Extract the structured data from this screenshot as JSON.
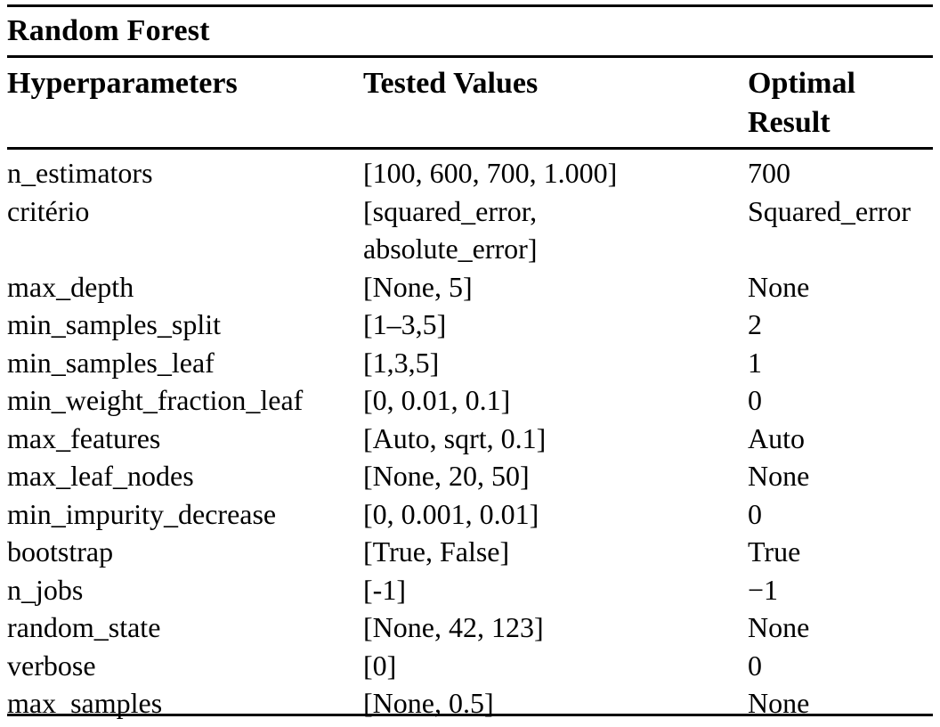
{
  "table": {
    "title": "Random Forest",
    "columns": {
      "hyperparameters": "Hyperparameters",
      "tested_values": "Tested Values",
      "optimal_result": "Optimal Result"
    },
    "rows": [
      {
        "hyperparameter": "n_estimators",
        "tested_values": "[100, 600, 700, 1.000]",
        "optimal_result": "700"
      },
      {
        "hyperparameter": "critério",
        "tested_values": "[squared_error,\nabsolute_error]",
        "optimal_result": "Squared_error"
      },
      {
        "hyperparameter": "max_depth",
        "tested_values": "[None, 5]",
        "optimal_result": "None"
      },
      {
        "hyperparameter": "min_samples_split",
        "tested_values": "[1–3,5]",
        "optimal_result": "2"
      },
      {
        "hyperparameter": "min_samples_leaf",
        "tested_values": "[1,3,5]",
        "optimal_result": "1"
      },
      {
        "hyperparameter": "min_weight_fraction_leaf",
        "tested_values": "[0, 0.01, 0.1]",
        "optimal_result": "0"
      },
      {
        "hyperparameter": "max_features",
        "tested_values": "[Auto, sqrt, 0.1]",
        "optimal_result": "Auto"
      },
      {
        "hyperparameter": "max_leaf_nodes",
        "tested_values": "[None, 20, 50]",
        "optimal_result": "None"
      },
      {
        "hyperparameter": "min_impurity_decrease",
        "tested_values": "[0, 0.001, 0.01]",
        "optimal_result": "0"
      },
      {
        "hyperparameter": "bootstrap",
        "tested_values": "[True, False]",
        "optimal_result": "True"
      },
      {
        "hyperparameter": "n_jobs",
        "tested_values": "[-1]",
        "optimal_result": "−1"
      },
      {
        "hyperparameter": "random_state",
        "tested_values": "[None, 42, 123]",
        "optimal_result": "None"
      },
      {
        "hyperparameter": "verbose",
        "tested_values": "[0]",
        "optimal_result": "0"
      },
      {
        "hyperparameter": "max_samples",
        "tested_values": "[None, 0.5]",
        "optimal_result": "None"
      }
    ],
    "colors": {
      "text": "#000000",
      "background": "#ffffff",
      "rule": "#000000"
    }
  }
}
